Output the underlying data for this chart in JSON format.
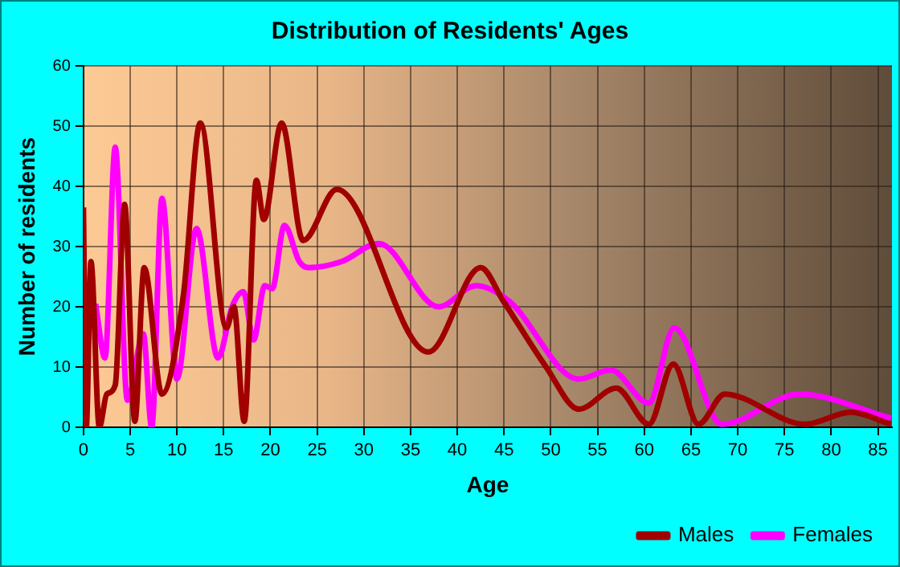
{
  "chart_data": {
    "type": "line",
    "title": "Distribution of Residents' Ages",
    "xlabel": "Age",
    "ylabel": "Number of residents",
    "xlim": [
      0,
      86.5
    ],
    "xticks": [
      0,
      5,
      10,
      15,
      20,
      25,
      30,
      35,
      40,
      45,
      50,
      55,
      60,
      65,
      70,
      75,
      80,
      85
    ],
    "ylim": [
      0,
      60
    ],
    "yticks": [
      0,
      10,
      20,
      30,
      40,
      50,
      60
    ],
    "grid": true,
    "legend": "bottom right",
    "marker": "none",
    "line_style": "solid",
    "series": [
      {
        "name": "Males",
        "color": "#a00000",
        "x": [
          0,
          0.3,
          0.8,
          1.7,
          2.5,
          3.4,
          4.4,
          5.5,
          6.5,
          8.4,
          10.7,
          12.5,
          15.3,
          16.1,
          17.2,
          18.5,
          19.3,
          21.2,
          23.5,
          27.1,
          36.9,
          42.5,
          44.9,
          49.5,
          53,
          57,
          60.5,
          63.1,
          65.8,
          68.6,
          77.2,
          82.1,
          86.4
        ],
        "values": [
          36.5,
          0,
          27.5,
          0,
          5.5,
          7,
          37,
          1,
          26.5,
          5.5,
          22,
          50.5,
          16.5,
          20,
          1,
          41,
          34.5,
          50.5,
          31,
          39.5,
          12.5,
          26.5,
          21,
          10,
          3,
          6.5,
          0.5,
          10.5,
          0.5,
          5.5,
          0.5,
          2.5,
          0.5
        ]
      },
      {
        "name": "Females",
        "color": "#ff00ff",
        "x": [
          1.3,
          2.3,
          3.4,
          4.7,
          6.4,
          7.3,
          8.4,
          10,
          12.1,
          14.4,
          15.9,
          17.1,
          18.2,
          19.4,
          20.2,
          21.5,
          23.1,
          24.1,
          27.6,
          31.6,
          38,
          42,
          45.5,
          53,
          56.4,
          60.5,
          63.2,
          68.3,
          76.6,
          86.4
        ],
        "values": [
          20.5,
          11.5,
          46.5,
          4.5,
          15.5,
          0,
          38,
          8,
          33,
          11.5,
          20,
          22.5,
          14.5,
          23.5,
          23,
          33.5,
          27.5,
          26.5,
          27.5,
          30.5,
          20,
          23.5,
          21,
          8,
          9.5,
          4,
          16.5,
          0.5,
          5.5,
          1.5
        ]
      }
    ]
  }
}
